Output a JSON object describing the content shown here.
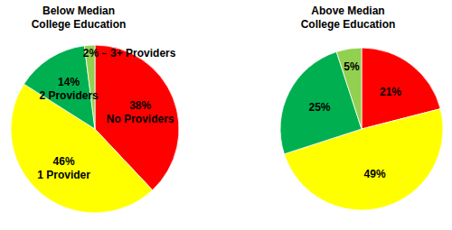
{
  "chart_data": [
    {
      "type": "pie",
      "title": "Below Median College Education",
      "categories": [
        "No Providers",
        "1 Provider",
        "2 Providers",
        "3+ Providers"
      ],
      "values": [
        38,
        46,
        14,
        2
      ],
      "value_labels": [
        "38%",
        "46%",
        "14%",
        "2%"
      ],
      "colors": [
        "#ff0000",
        "#ffff00",
        "#00b050",
        "#92d050"
      ],
      "data_labels": true
    },
    {
      "type": "pie",
      "title": "Above Median College Education",
      "values": [
        21,
        49,
        25,
        5
      ],
      "value_labels": [
        "21%",
        "49%",
        "25%",
        "5%"
      ],
      "colors": [
        "#ff0000",
        "#ffff00",
        "#00b050",
        "#92d050"
      ],
      "data_labels": true
    }
  ]
}
